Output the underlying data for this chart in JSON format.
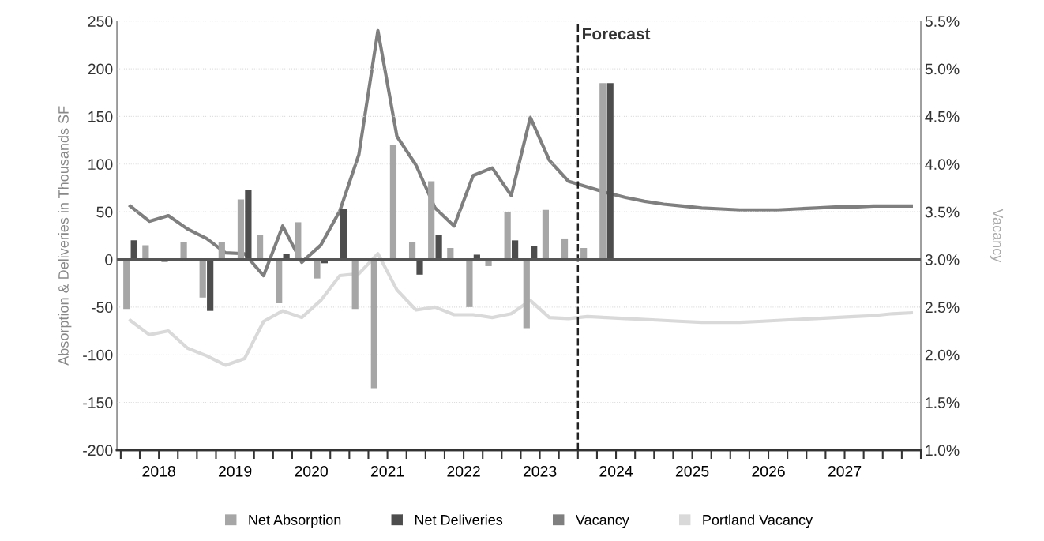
{
  "chart_data": {
    "type": "bar",
    "ylabel": "Absorption & Deliveries in Thousands SF",
    "y2label": "Vacancy",
    "x": [
      2018.125,
      2018.375,
      2018.625,
      2018.875,
      2019.125,
      2019.375,
      2019.625,
      2019.875,
      2020.125,
      2020.375,
      2020.625,
      2020.875,
      2021.125,
      2021.375,
      2021.625,
      2021.875,
      2022.125,
      2022.375,
      2022.625,
      2022.875,
      2023.125,
      2023.375,
      2023.625,
      2023.875,
      2024.125,
      2024.375,
      2024.625,
      2024.875,
      2025.125,
      2025.375,
      2025.625,
      2025.875,
      2026.125,
      2026.375,
      2026.625,
      2026.875,
      2027.125,
      2027.375,
      2027.625,
      2027.875,
      2028.125,
      2028.375
    ],
    "series": [
      {
        "name": "Net Absorption",
        "color": "#a6a6a6",
        "values": [
          -52,
          15,
          -3,
          18,
          -40,
          18,
          63,
          26,
          -46,
          39,
          -20,
          null,
          -52,
          -135,
          120,
          18,
          82,
          12,
          -50,
          -7,
          50,
          -72,
          52,
          22,
          12,
          185,
          null,
          null,
          null,
          null,
          null,
          null,
          null,
          null,
          null,
          null,
          null,
          null,
          null,
          null,
          null,
          null
        ]
      },
      {
        "name": "Net Deliveries",
        "color": "#4d4d4d",
        "values": [
          20,
          null,
          null,
          null,
          -54,
          null,
          73,
          null,
          6,
          null,
          -4,
          53,
          null,
          null,
          null,
          -16,
          26,
          null,
          5,
          null,
          20,
          14,
          null,
          null,
          null,
          185,
          null,
          null,
          null,
          null,
          null,
          null,
          null,
          null,
          null,
          null,
          null,
          null,
          null,
          null,
          null,
          null
        ]
      },
      {
        "name": "Vacancy",
        "type": "line",
        "axis": "y2",
        "color": "#7f7f7f",
        "values": [
          3.56,
          3.4,
          3.46,
          3.32,
          3.22,
          3.07,
          3.06,
          2.83,
          3.35,
          2.97,
          3.15,
          3.51,
          4.1,
          5.4,
          4.29,
          3.99,
          3.54,
          3.35,
          3.88,
          3.96,
          3.67,
          4.49,
          4.04,
          3.82,
          3.76,
          3.7,
          3.65,
          3.61,
          3.58,
          3.56,
          3.54,
          3.53,
          3.52,
          3.52,
          3.52,
          3.53,
          3.54,
          3.55,
          3.55,
          3.56,
          3.56,
          3.56
        ]
      },
      {
        "name": "Portland Vacancy",
        "type": "line",
        "axis": "y2",
        "color": "#d9d9d9",
        "values": [
          2.36,
          2.21,
          2.25,
          2.07,
          1.99,
          1.89,
          1.96,
          2.35,
          2.46,
          2.39,
          2.57,
          2.83,
          2.85,
          3.06,
          2.68,
          2.47,
          2.5,
          2.42,
          2.42,
          2.39,
          2.43,
          2.57,
          2.39,
          2.38,
          2.4,
          2.39,
          2.38,
          2.37,
          2.36,
          2.35,
          2.34,
          2.34,
          2.34,
          2.35,
          2.36,
          2.37,
          2.38,
          2.39,
          2.4,
          2.41,
          2.43,
          2.44
        ]
      }
    ],
    "xlim": [
      2017.95,
      2028.5
    ],
    "xticks": [
      {
        "value": 2018.0,
        "label": null
      },
      {
        "value": 2018.25,
        "label": null
      },
      {
        "value": 2018.5,
        "label": "2018"
      },
      {
        "value": 2018.75,
        "label": null
      },
      {
        "value": 2019.0,
        "label": null
      },
      {
        "value": 2019.25,
        "label": null
      },
      {
        "value": 2019.5,
        "label": "2019"
      },
      {
        "value": 2019.75,
        "label": null
      },
      {
        "value": 2020.0,
        "label": null
      },
      {
        "value": 2020.25,
        "label": null
      },
      {
        "value": 2020.5,
        "label": "2020"
      },
      {
        "value": 2020.75,
        "label": null
      },
      {
        "value": 2021.0,
        "label": null
      },
      {
        "value": 2021.25,
        "label": null
      },
      {
        "value": 2021.5,
        "label": "2021"
      },
      {
        "value": 2021.75,
        "label": null
      },
      {
        "value": 2022.0,
        "label": null
      },
      {
        "value": 2022.25,
        "label": null
      },
      {
        "value": 2022.5,
        "label": "2022"
      },
      {
        "value": 2022.75,
        "label": null
      },
      {
        "value": 2023.0,
        "label": null
      },
      {
        "value": 2023.25,
        "label": null
      },
      {
        "value": 2023.5,
        "label": "2023"
      },
      {
        "value": 2023.75,
        "label": null
      },
      {
        "value": 2024.0,
        "label": null
      },
      {
        "value": 2024.25,
        "label": null
      },
      {
        "value": 2024.5,
        "label": "2024"
      },
      {
        "value": 2024.75,
        "label": null
      },
      {
        "value": 2025.0,
        "label": null
      },
      {
        "value": 2025.25,
        "label": null
      },
      {
        "value": 2025.5,
        "label": "2025"
      },
      {
        "value": 2025.75,
        "label": null
      },
      {
        "value": 2026.0,
        "label": null
      },
      {
        "value": 2026.25,
        "label": null
      },
      {
        "value": 2026.5,
        "label": "2026"
      },
      {
        "value": 2026.75,
        "label": null
      },
      {
        "value": 2027.0,
        "label": null
      },
      {
        "value": 2027.25,
        "label": null
      },
      {
        "value": 2027.5,
        "label": "2027"
      },
      {
        "value": 2027.75,
        "label": null
      },
      {
        "value": 2028.0,
        "label": null
      },
      {
        "value": 2028.25,
        "label": null
      },
      {
        "value": 2028.5,
        "label": null
      }
    ],
    "ylim": [
      -200,
      250
    ],
    "yticks": [
      -200,
      -150,
      -100,
      -50,
      0,
      50,
      100,
      150,
      200,
      250
    ],
    "y2lim": [
      1.0,
      5.5
    ],
    "y2ticks": [
      {
        "value": 1.0,
        "label": "1.0%"
      },
      {
        "value": 1.5,
        "label": "1.5%"
      },
      {
        "value": 2.0,
        "label": "2.0%"
      },
      {
        "value": 2.5,
        "label": "2.5%"
      },
      {
        "value": 3.0,
        "label": "3.0%"
      },
      {
        "value": 3.5,
        "label": "3.5%"
      },
      {
        "value": 4.0,
        "label": "4.0%"
      },
      {
        "value": 4.5,
        "label": "4.5%"
      },
      {
        "value": 5.0,
        "label": "5.0%"
      },
      {
        "value": 5.5,
        "label": "5.5%"
      }
    ],
    "ref_lines": [
      {
        "axis": "x",
        "value": 2024.0,
        "label": "Forecast",
        "color": "#222222",
        "line_style": "dashed"
      },
      {
        "axis": "y",
        "value": 0,
        "label": null,
        "color": "#555555",
        "line_style": "solid"
      }
    ],
    "grid": "y",
    "legend": "bottom",
    "marker": "none",
    "line_style": "solid"
  }
}
